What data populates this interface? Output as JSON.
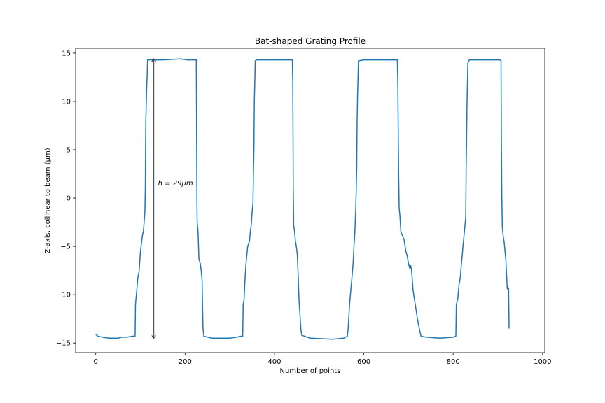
{
  "chart_data": {
    "type": "line",
    "title": "Bat-shaped Grating Profile",
    "xlabel": "Number of points",
    "ylabel": "Z-axis, collinear to beam (μm)",
    "xlim": [
      -45,
      1005
    ],
    "ylim": [
      -16,
      15.5
    ],
    "xticks": [
      0,
      200,
      400,
      600,
      800,
      1000
    ],
    "yticks": [
      -15,
      -10,
      -5,
      0,
      5,
      10,
      15
    ],
    "grid": false,
    "line_color": "#1f77b4",
    "series": [
      {
        "points": [
          [
            0,
            -14.1
          ],
          [
            5,
            -14.3
          ],
          [
            15,
            -14.4
          ],
          [
            30,
            -14.5
          ],
          [
            50,
            -14.5
          ],
          [
            58,
            -14.4
          ],
          [
            70,
            -14.4
          ],
          [
            82,
            -14.3
          ],
          [
            88,
            -14.3
          ],
          [
            89,
            -11.0
          ],
          [
            90,
            -10.5
          ],
          [
            92,
            -9.5
          ],
          [
            94,
            -8.3
          ],
          [
            97,
            -7.6
          ],
          [
            100,
            -5.6
          ],
          [
            104,
            -4.0
          ],
          [
            107,
            -3.3
          ],
          [
            109,
            -2.0
          ],
          [
            110,
            -1.5
          ],
          [
            111,
            1.0
          ],
          [
            111.5,
            4.8
          ],
          [
            112,
            8.0
          ],
          [
            113,
            9.5
          ],
          [
            114,
            11.5
          ],
          [
            115,
            12.5
          ],
          [
            116,
            14.3
          ],
          [
            150,
            14.3
          ],
          [
            190,
            14.4
          ],
          [
            205,
            14.3
          ],
          [
            225,
            14.3
          ],
          [
            226,
            5.0
          ],
          [
            226.5,
            0.0
          ],
          [
            227,
            -2.5
          ],
          [
            229,
            -3.5
          ],
          [
            231,
            -6.3
          ],
          [
            234,
            -6.8
          ],
          [
            236,
            -7.5
          ],
          [
            238,
            -8.5
          ],
          [
            239,
            -11.0
          ],
          [
            240,
            -13.5
          ],
          [
            242,
            -14.3
          ],
          [
            260,
            -14.5
          ],
          [
            300,
            -14.5
          ],
          [
            315,
            -14.4
          ],
          [
            325,
            -14.3
          ],
          [
            329,
            -14.3
          ],
          [
            330,
            -11.0
          ],
          [
            332,
            -10.5
          ],
          [
            334,
            -8.5
          ],
          [
            336,
            -7.0
          ],
          [
            338,
            -6.0
          ],
          [
            340,
            -5.0
          ],
          [
            344,
            -4.5
          ],
          [
            346,
            -3.5
          ],
          [
            348,
            -2.8
          ],
          [
            350,
            -1.5
          ],
          [
            352,
            -0.5
          ],
          [
            353,
            3.0
          ],
          [
            354,
            5.0
          ],
          [
            355,
            10.0
          ],
          [
            356,
            12.0
          ],
          [
            357,
            14.2
          ],
          [
            360,
            14.3
          ],
          [
            420,
            14.3
          ],
          [
            440,
            14.3
          ],
          [
            441,
            12.0
          ],
          [
            441.5,
            8.0
          ],
          [
            442,
            1.0
          ],
          [
            443,
            -2.8
          ],
          [
            445,
            -3.5
          ],
          [
            447,
            -4.5
          ],
          [
            449,
            -5.0
          ],
          [
            451,
            -5.8
          ],
          [
            453,
            -8.0
          ],
          [
            455,
            -10.5
          ],
          [
            457,
            -12.0
          ],
          [
            459,
            -13.5
          ],
          [
            461,
            -14.2
          ],
          [
            480,
            -14.5
          ],
          [
            530,
            -14.6
          ],
          [
            555,
            -14.5
          ],
          [
            563,
            -14.3
          ],
          [
            565,
            -13.5
          ],
          [
            568,
            -11.0
          ],
          [
            570,
            -10.0
          ],
          [
            573,
            -8.5
          ],
          [
            576,
            -6.7
          ],
          [
            578,
            -5.0
          ],
          [
            580,
            -3.5
          ],
          [
            582,
            -1.0
          ],
          [
            584,
            3.0
          ],
          [
            585,
            8.0
          ],
          [
            586,
            10.5
          ],
          [
            587,
            12.5
          ],
          [
            588,
            14.2
          ],
          [
            600,
            14.3
          ],
          [
            660,
            14.3
          ],
          [
            675,
            14.3
          ],
          [
            676,
            12.0
          ],
          [
            677,
            7.0
          ],
          [
            678,
            2.5
          ],
          [
            679,
            -1.0
          ],
          [
            681,
            -2.0
          ],
          [
            683,
            -3.5
          ],
          [
            690,
            -4.3
          ],
          [
            694,
            -5.5
          ],
          [
            697,
            -6.0
          ],
          [
            700,
            -6.8
          ],
          [
            703,
            -7.3
          ],
          [
            705,
            -7.0
          ],
          [
            707,
            -7.5
          ],
          [
            710,
            -9.5
          ],
          [
            715,
            -11.0
          ],
          [
            720,
            -12.5
          ],
          [
            725,
            -13.7
          ],
          [
            728,
            -14.3
          ],
          [
            740,
            -14.4
          ],
          [
            770,
            -14.5
          ],
          [
            800,
            -14.4
          ],
          [
            806,
            -14.3
          ],
          [
            807,
            -11.0
          ],
          [
            810,
            -10.5
          ],
          [
            813,
            -9.0
          ],
          [
            816,
            -8.2
          ],
          [
            818,
            -7.0
          ],
          [
            820,
            -6.0
          ],
          [
            822,
            -5.0
          ],
          [
            824,
            -4.0
          ],
          [
            826,
            -3.0
          ],
          [
            828,
            -2.0
          ],
          [
            829,
            3.0
          ],
          [
            830,
            6.0
          ],
          [
            831,
            10.0
          ],
          [
            833,
            14.0
          ],
          [
            836,
            14.3
          ],
          [
            880,
            14.3
          ],
          [
            905,
            14.3
          ],
          [
            907,
            14.2
          ],
          [
            908,
            5.0
          ],
          [
            909,
            0.0
          ],
          [
            910,
            -3.0
          ],
          [
            912,
            -4.0
          ],
          [
            914,
            -4.5
          ],
          [
            916,
            -5.5
          ],
          [
            918,
            -6.5
          ],
          [
            920,
            -8.5
          ],
          [
            921,
            -9.4
          ],
          [
            922,
            -9.2
          ],
          [
            924,
            -9.3
          ],
          [
            925,
            -13.5
          ]
        ]
      }
    ],
    "annotation": {
      "text": "h = 29μm",
      "x": 130,
      "y_from": 14.4,
      "y_to": -14.5,
      "text_y": 1.3
    }
  }
}
